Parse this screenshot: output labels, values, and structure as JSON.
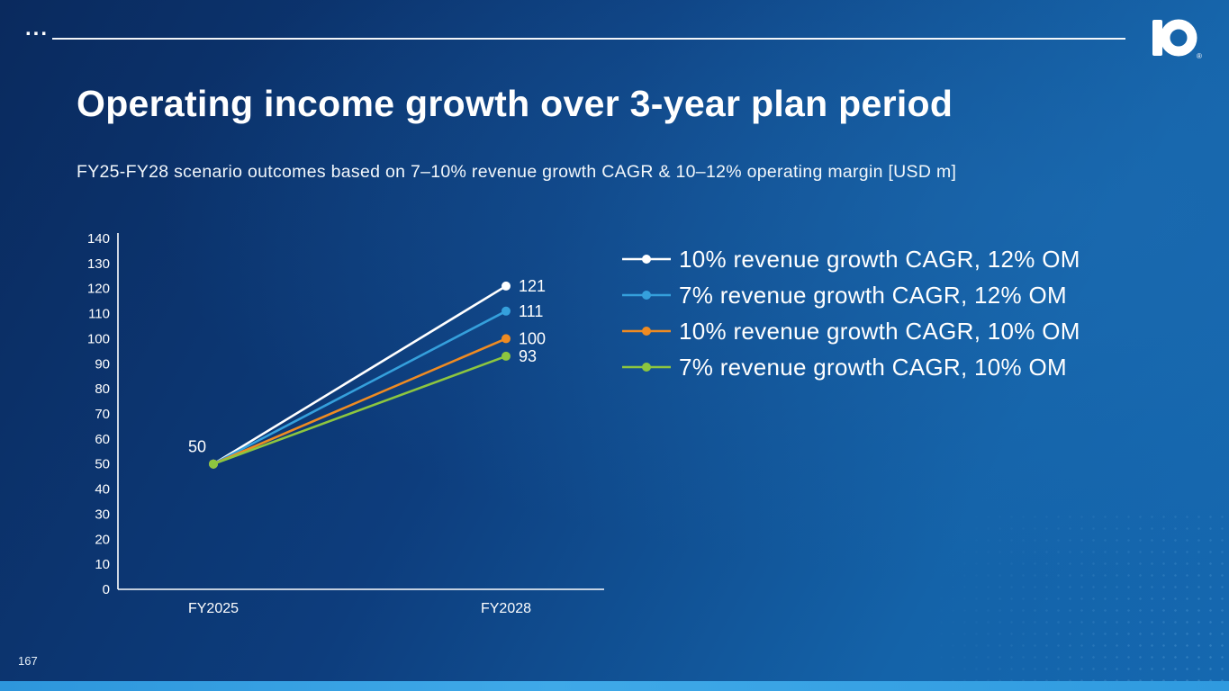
{
  "slide": {
    "ellipsis": "...",
    "title": "Operating income growth over 3-year plan period",
    "subtitle": "FY25-FY28 scenario outcomes based on 7–10% revenue growth CAGR & 10–12% operating margin [USD m]",
    "page_number": "167",
    "logo": "brand-d-logo"
  },
  "chart_data": {
    "type": "line",
    "title": "",
    "xlabel": "",
    "ylabel": "",
    "categories": [
      "FY2025",
      "FY2028"
    ],
    "series": [
      {
        "name": "10% revenue growth CAGR, 12% OM",
        "color": "#ffffff",
        "values": [
          50,
          121
        ]
      },
      {
        "name": "7% revenue growth CAGR, 12% OM",
        "color": "#35a0dc",
        "values": [
          50,
          111
        ]
      },
      {
        "name": "10% revenue growth CAGR, 10% OM",
        "color": "#ef8b22",
        "values": [
          50,
          100
        ]
      },
      {
        "name": "7% revenue growth CAGR, 10% OM",
        "color": "#8dc63f",
        "values": [
          50,
          93
        ]
      }
    ],
    "start_label": "50",
    "end_labels": [
      "121",
      "111",
      "100",
      "93"
    ],
    "ylim": [
      0,
      140
    ],
    "ytick_step": 10,
    "grid": false,
    "legend_position": "right",
    "marker": "circle"
  }
}
